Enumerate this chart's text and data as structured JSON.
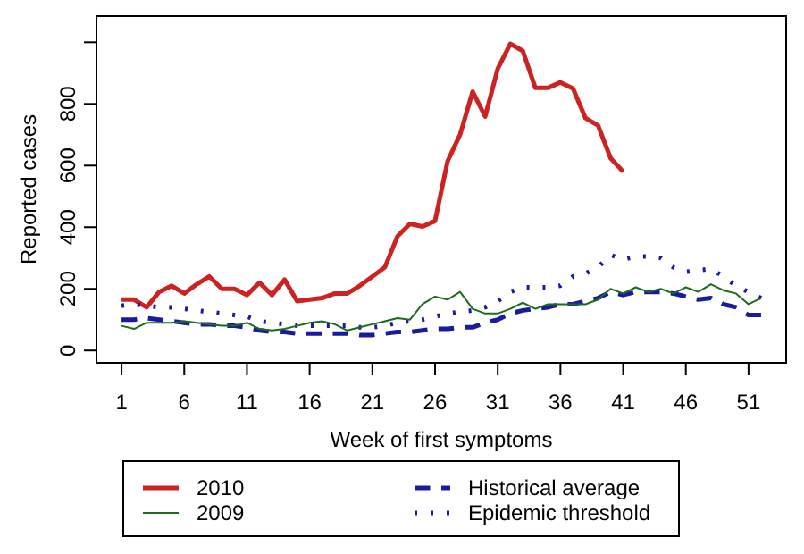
{
  "chart_data": {
    "type": "line",
    "xlabel": "Week of first symptoms",
    "ylabel": "Reported cases",
    "xlim": [
      -1,
      54
    ],
    "xticks": [
      1,
      6,
      11,
      16,
      21,
      26,
      31,
      36,
      41,
      46,
      51
    ],
    "ylim": [
      -40,
      1085
    ],
    "yticks": [
      0,
      200,
      400,
      600,
      800,
      {
        "value": 1000,
        "label": null
      }
    ],
    "legend": "bottom",
    "grid": false,
    "series": [
      {
        "name": "2010",
        "color": "#cc2222",
        "line_style": "solid",
        "x": [
          1,
          2,
          3,
          4,
          5,
          6,
          7,
          8,
          9,
          10,
          11,
          12,
          13,
          14,
          15,
          16,
          17,
          18,
          19,
          20,
          21,
          22,
          23,
          24,
          25,
          26,
          27,
          28,
          29,
          30,
          31,
          32,
          33,
          34,
          35,
          36,
          37,
          38,
          39,
          40,
          41
        ],
        "values": [
          165,
          165,
          140,
          190,
          210,
          185,
          215,
          240,
          200,
          200,
          180,
          220,
          180,
          230,
          160,
          165,
          170,
          185,
          185,
          210,
          240,
          270,
          370,
          411,
          402,
          420,
          614,
          701,
          840,
          759,
          914,
          995,
          972,
          852,
          852,
          870,
          850,
          754,
          730,
          624,
          580
        ]
      },
      {
        "name": "2009",
        "color": "#1e6b1e",
        "line_style": "solid",
        "x": [
          1,
          2,
          3,
          4,
          5,
          6,
          7,
          8,
          9,
          10,
          11,
          12,
          13,
          14,
          15,
          16,
          17,
          18,
          19,
          20,
          21,
          22,
          23,
          24,
          25,
          26,
          27,
          28,
          29,
          30,
          31,
          32,
          33,
          34,
          35,
          36,
          37,
          38,
          39,
          40,
          41,
          42,
          43,
          44,
          45,
          46,
          47,
          48,
          49,
          50,
          51,
          52
        ],
        "values": [
          80,
          70,
          90,
          90,
          90,
          95,
          90,
          85,
          80,
          80,
          90,
          70,
          65,
          70,
          80,
          90,
          95,
          85,
          65,
          75,
          85,
          95,
          105,
          100,
          150,
          175,
          165,
          190,
          135,
          120,
          120,
          135,
          155,
          135,
          150,
          150,
          150,
          150,
          165,
          200,
          185,
          205,
          190,
          200,
          185,
          205,
          190,
          215,
          195,
          185,
          150,
          170
        ]
      },
      {
        "name": "Historical average",
        "color": "#1a1aa0",
        "line_style": "dashed",
        "x": [
          1,
          2,
          3,
          4,
          5,
          6,
          7,
          8,
          9,
          10,
          11,
          12,
          13,
          14,
          15,
          16,
          17,
          18,
          19,
          20,
          21,
          22,
          23,
          24,
          25,
          26,
          27,
          28,
          29,
          30,
          31,
          32,
          33,
          34,
          35,
          36,
          37,
          38,
          39,
          40,
          41,
          42,
          43,
          44,
          45,
          46,
          47,
          48,
          49,
          50,
          51,
          52
        ],
        "values": [
          100,
          100,
          105,
          100,
          95,
          90,
          85,
          85,
          80,
          80,
          75,
          65,
          60,
          60,
          55,
          55,
          55,
          55,
          55,
          50,
          50,
          55,
          60,
          60,
          65,
          70,
          70,
          75,
          75,
          90,
          100,
          120,
          130,
          135,
          140,
          150,
          150,
          160,
          170,
          190,
          180,
          190,
          190,
          190,
          185,
          175,
          165,
          170,
          150,
          140,
          115,
          115
        ]
      },
      {
        "name": "Epidemic threshold",
        "color": "#1a1aa0",
        "line_style": "dotted",
        "x": [
          1,
          2,
          3,
          4,
          5,
          6,
          7,
          8,
          9,
          10,
          11,
          12,
          13,
          14,
          15,
          16,
          17,
          18,
          19,
          20,
          21,
          22,
          23,
          24,
          25,
          26,
          27,
          28,
          29,
          30,
          31,
          32,
          33,
          34,
          35,
          36,
          37,
          38,
          39,
          40,
          41,
          42,
          43,
          44,
          45,
          46,
          47,
          48,
          49,
          50,
          51,
          52
        ],
        "values": [
          145,
          150,
          145,
          140,
          140,
          135,
          130,
          125,
          120,
          115,
          110,
          95,
          90,
          85,
          80,
          80,
          80,
          80,
          80,
          75,
          75,
          80,
          90,
          95,
          100,
          110,
          120,
          125,
          130,
          140,
          160,
          190,
          205,
          205,
          205,
          210,
          240,
          250,
          270,
          310,
          295,
          305,
          305,
          300,
          270,
          255,
          260,
          265,
          240,
          210,
          190,
          170
        ]
      }
    ]
  }
}
